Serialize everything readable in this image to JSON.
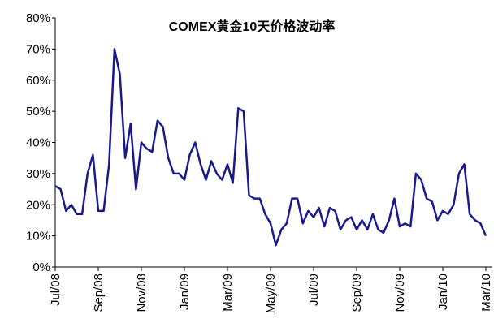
{
  "chart_data": {
    "type": "line",
    "title": "COMEX黄金10天价格波动率",
    "categories": [
      "Jul/08",
      null,
      null,
      null,
      null,
      null,
      null,
      null,
      "Sep/08",
      null,
      null,
      null,
      null,
      null,
      null,
      null,
      "Nov/08",
      null,
      null,
      null,
      null,
      null,
      null,
      null,
      "Jan/09",
      null,
      null,
      null,
      null,
      null,
      null,
      null,
      "Mar/09",
      null,
      null,
      null,
      null,
      null,
      null,
      null,
      "May/09",
      null,
      null,
      null,
      null,
      null,
      null,
      null,
      "Jul/09",
      null,
      null,
      null,
      null,
      null,
      null,
      null,
      "Sep/09",
      null,
      null,
      null,
      null,
      null,
      null,
      null,
      "Nov/09",
      null,
      null,
      null,
      null,
      null,
      null,
      null,
      "Jan/10",
      null,
      null,
      null,
      null,
      null,
      null,
      null,
      "Mar/10"
    ],
    "series": [
      {
        "name": "COMEX黄金10天价格波动率",
        "color": "#1a1a8c",
        "values": [
          26,
          25,
          18,
          20,
          17,
          17,
          30,
          36,
          18,
          18,
          33,
          70,
          62,
          35,
          46,
          25,
          40,
          38,
          37,
          47,
          45,
          35,
          30,
          30,
          28,
          36,
          40,
          33,
          28,
          34,
          30,
          28,
          33,
          27,
          51,
          50,
          23,
          22,
          22,
          17,
          14,
          7,
          12,
          14,
          22,
          22,
          14,
          18,
          16,
          19,
          13,
          19,
          18,
          12,
          15,
          16,
          12,
          15,
          12,
          17,
          12,
          11,
          15,
          22,
          13,
          14,
          13,
          30,
          28,
          22,
          21,
          15,
          18,
          17,
          20,
          30,
          33,
          17,
          15,
          14,
          10
        ]
      }
    ],
    "ylim": [
      0,
      80
    ],
    "yticks": [
      {
        "value": 0,
        "label": "0%"
      },
      {
        "value": 10,
        "label": "10%"
      },
      {
        "value": 20,
        "label": "20%"
      },
      {
        "value": 30,
        "label": "30%"
      },
      {
        "value": 40,
        "label": "40%"
      },
      {
        "value": 50,
        "label": "50%"
      },
      {
        "value": 60,
        "label": "60%"
      },
      {
        "value": 70,
        "label": "70%"
      },
      {
        "value": 80,
        "label": "80%"
      }
    ],
    "grid": false
  }
}
